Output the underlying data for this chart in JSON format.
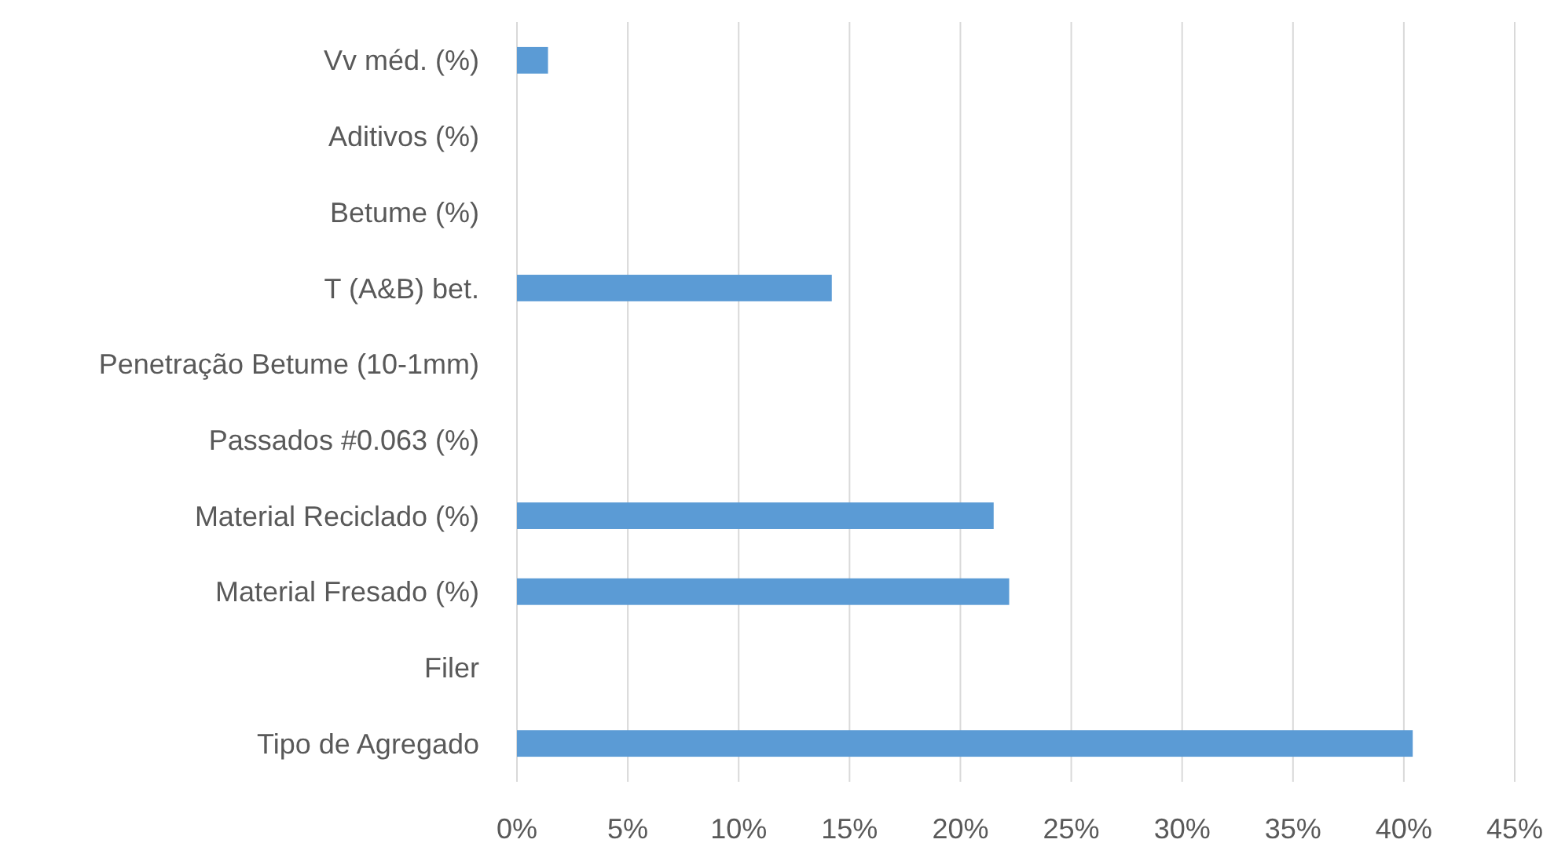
{
  "chart_data": {
    "type": "bar",
    "orientation": "horizontal",
    "categories": [
      "Vv méd. (%)",
      "Aditivos (%)",
      "Betume (%)",
      "T (A&B) bet.",
      "Penetração Betume (10-1mm)",
      "Passados #0.063 (%)",
      "Material Reciclado (%)",
      "Material Fresado (%)",
      "Filer",
      "Tipo de Agregado"
    ],
    "values": [
      1.4,
      0,
      0,
      14.2,
      0,
      0,
      21.5,
      22.2,
      0,
      40.4
    ],
    "color": "#5b9bd5",
    "xlim": [
      0,
      45
    ],
    "xticks": [
      {
        "value": 0,
        "label": "0%"
      },
      {
        "value": 5,
        "label": "5%"
      },
      {
        "value": 10,
        "label": "10%"
      },
      {
        "value": 15,
        "label": "15%"
      },
      {
        "value": 20,
        "label": "20%"
      },
      {
        "value": 25,
        "label": "25%"
      },
      {
        "value": 30,
        "label": "30%"
      },
      {
        "value": 35,
        "label": "35%"
      },
      {
        "value": 40,
        "label": "40%"
      },
      {
        "value": 45,
        "label": "45%"
      }
    ],
    "grid": "x"
  }
}
